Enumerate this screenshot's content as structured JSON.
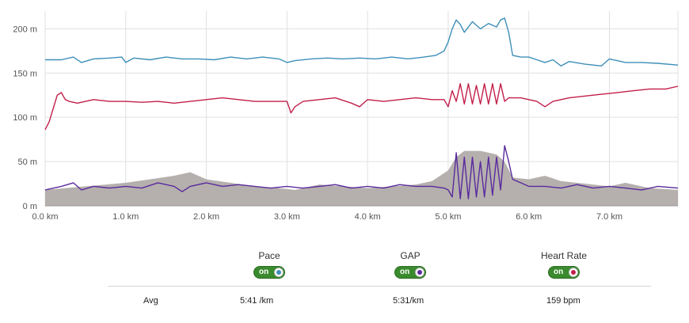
{
  "chart_data": {
    "type": "line",
    "x_ticks": [
      "0.0 km",
      "1.0 km",
      "2.0 km",
      "3.0 km",
      "4.0 km",
      "5.0 km",
      "6.0 km",
      "7.0 km"
    ],
    "y_ticks": [
      "0 m",
      "50 m",
      "100 m",
      "150 m",
      "200 m"
    ],
    "xlim": [
      0,
      7.85
    ],
    "ylim": [
      0,
      220
    ],
    "grid": true,
    "area": {
      "x": [
        0,
        0.5,
        1.0,
        1.3,
        1.6,
        1.8,
        2.0,
        2.3,
        2.6,
        2.9,
        3.1,
        3.4,
        3.7,
        4.0,
        4.3,
        4.6,
        4.8,
        5.0,
        5.1,
        5.2,
        5.4,
        5.6,
        5.7,
        5.8,
        6.0,
        6.2,
        6.4,
        6.8,
        7.0,
        7.2,
        7.5,
        7.85
      ],
      "y": [
        18,
        22,
        26,
        30,
        34,
        38,
        30,
        26,
        22,
        20,
        18,
        24,
        22,
        20,
        22,
        24,
        28,
        40,
        55,
        62,
        62,
        58,
        50,
        32,
        30,
        34,
        28,
        24,
        22,
        26,
        20,
        18
      ]
    },
    "series": [
      {
        "color": "#3d8fb8",
        "x": [
          0,
          0.2,
          0.35,
          0.45,
          0.6,
          0.8,
          0.95,
          1.0,
          1.1,
          1.3,
          1.5,
          1.7,
          1.9,
          2.1,
          2.3,
          2.5,
          2.7,
          2.9,
          3.0,
          3.1,
          3.3,
          3.5,
          3.7,
          3.9,
          4.1,
          4.3,
          4.5,
          4.7,
          4.85,
          4.95,
          5.0,
          5.05,
          5.1,
          5.15,
          5.2,
          5.3,
          5.4,
          5.5,
          5.6,
          5.65,
          5.7,
          5.75,
          5.8,
          5.9,
          6.0,
          6.1,
          6.2,
          6.3,
          6.4,
          6.5,
          6.7,
          6.9,
          7.0,
          7.2,
          7.4,
          7.6,
          7.85
        ],
        "y": [
          165,
          165,
          168,
          162,
          166,
          167,
          168,
          162,
          167,
          165,
          168,
          166,
          166,
          165,
          168,
          166,
          168,
          166,
          162,
          164,
          166,
          167,
          166,
          167,
          166,
          168,
          166,
          168,
          170,
          175,
          185,
          200,
          210,
          205,
          196,
          208,
          200,
          206,
          202,
          210,
          212,
          196,
          170,
          168,
          168,
          165,
          162,
          165,
          158,
          163,
          160,
          158,
          166,
          162,
          162,
          161,
          159
        ]
      },
      {
        "color": "#c21f4a",
        "x": [
          0,
          0.05,
          0.1,
          0.15,
          0.2,
          0.25,
          0.3,
          0.4,
          0.6,
          0.8,
          1.0,
          1.2,
          1.4,
          1.6,
          1.8,
          2.0,
          2.2,
          2.4,
          2.6,
          2.8,
          3.0,
          3.05,
          3.1,
          3.2,
          3.4,
          3.6,
          3.8,
          3.9,
          4.0,
          4.2,
          4.4,
          4.6,
          4.8,
          4.95,
          5.0,
          5.05,
          5.1,
          5.15,
          5.2,
          5.25,
          5.3,
          5.35,
          5.4,
          5.45,
          5.5,
          5.55,
          5.6,
          5.65,
          5.7,
          5.75,
          5.9,
          6.1,
          6.2,
          6.3,
          6.5,
          6.7,
          6.9,
          7.1,
          7.3,
          7.5,
          7.7,
          7.85
        ],
        "y": [
          86,
          95,
          110,
          125,
          128,
          120,
          118,
          116,
          120,
          118,
          118,
          117,
          118,
          116,
          118,
          120,
          122,
          120,
          118,
          118,
          118,
          105,
          112,
          118,
          120,
          122,
          116,
          112,
          120,
          118,
          120,
          122,
          120,
          120,
          112,
          130,
          118,
          138,
          115,
          138,
          115,
          136,
          115,
          138,
          115,
          138,
          115,
          138,
          118,
          122,
          122,
          118,
          112,
          118,
          122,
          124,
          126,
          128,
          130,
          132,
          132,
          135
        ]
      },
      {
        "color": "#5a2a9e",
        "x": [
          0,
          0.2,
          0.35,
          0.45,
          0.6,
          0.8,
          1.0,
          1.2,
          1.4,
          1.6,
          1.7,
          1.8,
          2.0,
          2.2,
          2.4,
          2.6,
          2.8,
          3.0,
          3.2,
          3.4,
          3.6,
          3.8,
          4.0,
          4.2,
          4.4,
          4.6,
          4.8,
          4.95,
          5.0,
          5.05,
          5.1,
          5.15,
          5.2,
          5.25,
          5.3,
          5.35,
          5.4,
          5.45,
          5.5,
          5.55,
          5.6,
          5.65,
          5.7,
          5.75,
          5.8,
          5.9,
          6.0,
          6.2,
          6.4,
          6.6,
          6.8,
          7.0,
          7.2,
          7.4,
          7.6,
          7.85
        ],
        "y": [
          18,
          22,
          26,
          18,
          22,
          20,
          22,
          20,
          26,
          22,
          16,
          22,
          26,
          22,
          24,
          22,
          20,
          22,
          20,
          22,
          24,
          20,
          22,
          20,
          24,
          22,
          22,
          20,
          18,
          10,
          60,
          8,
          55,
          8,
          55,
          10,
          50,
          10,
          55,
          12,
          55,
          18,
          68,
          50,
          30,
          26,
          22,
          22,
          20,
          24,
          20,
          22,
          20,
          18,
          22,
          20
        ]
      }
    ]
  },
  "legend": [
    {
      "label": "Pace",
      "toggle": "on",
      "dot_color": "#3d8fb8"
    },
    {
      "label": "GAP",
      "toggle": "on",
      "dot_color": "#5a2a9e"
    },
    {
      "label": "Heart Rate",
      "toggle": "on",
      "dot_color": "#c21f4a"
    }
  ],
  "summary": {
    "row_label": "Avg",
    "pace": "5:41 /km",
    "gap": "5:31/km",
    "heart_rate": "159 bpm"
  },
  "colors": {
    "area_fill": "#b5b0ad",
    "grid": "#e0e0e0",
    "toggle_on": "#3a8a2e"
  }
}
